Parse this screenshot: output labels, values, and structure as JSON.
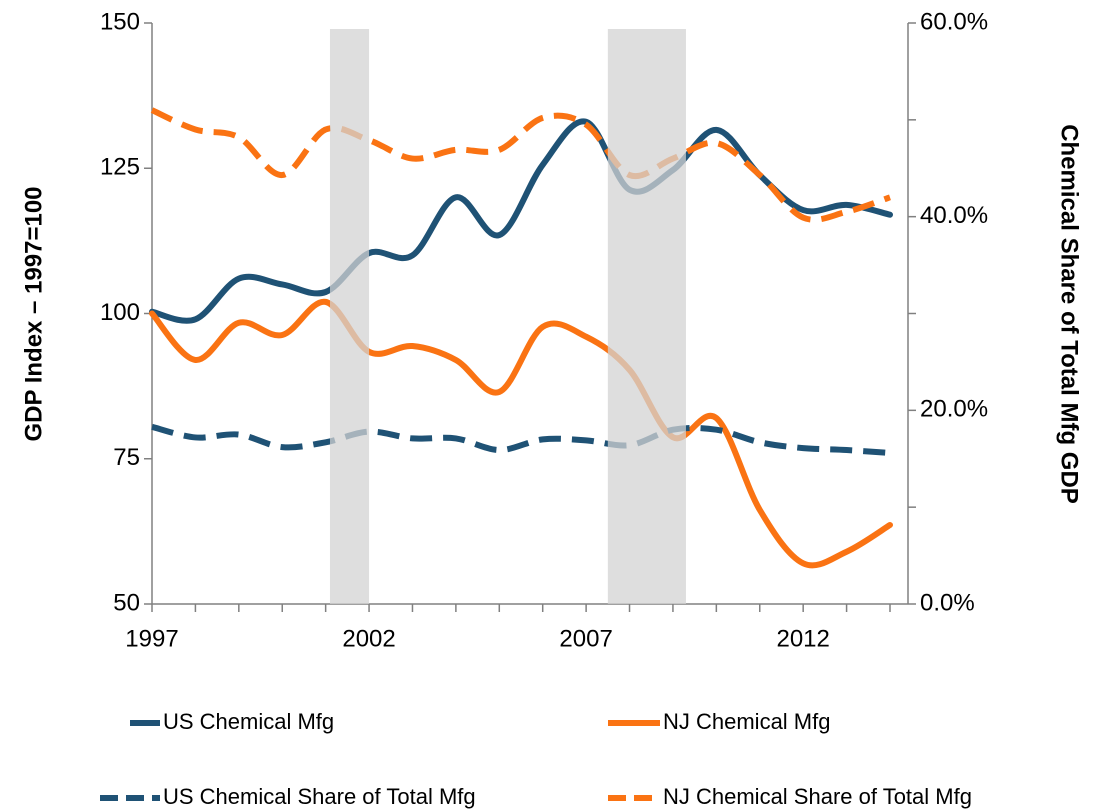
{
  "chart_data": {
    "type": "line",
    "x": [
      1997,
      1998,
      1999,
      2000,
      2001,
      2002,
      2003,
      2004,
      2005,
      2006,
      2007,
      2008,
      2009,
      2010,
      2011,
      2012,
      2013,
      2014
    ],
    "xlim": [
      1997,
      2014
    ],
    "xticks": [
      1997,
      2002,
      2007,
      2012
    ],
    "xminor_ticks": [
      1998,
      1999,
      2000,
      2001,
      2003,
      2004,
      2005,
      2006,
      2008,
      2009,
      2010,
      2011,
      2013,
      2014
    ],
    "ylabel": "GDP Index – 1997=100",
    "ylim": [
      50,
      150
    ],
    "yticks": [
      50,
      75,
      100,
      125,
      150
    ],
    "y2label": "Chemical Share of Total Mfg GDP",
    "y2lim": [
      0,
      60
    ],
    "y2ticks": [
      {
        "value": 0,
        "label": "0.0%"
      },
      {
        "value": 20,
        "label": "20.0%"
      },
      {
        "value": 40,
        "label": "40.0%"
      },
      {
        "value": 60,
        "label": "60.0%"
      }
    ],
    "y2minor_ticks": [
      10,
      30,
      50
    ],
    "shaded_ranges": [
      [
        2001.1,
        2002
      ],
      [
        2007.5,
        2009.3
      ]
    ],
    "series": [
      {
        "name": "US Chemical Mfg",
        "color": "#1f5275",
        "dashed": false,
        "values": [
          100.3,
          99,
          106,
          105,
          103.7,
          110.4,
          110,
          120,
          113.5,
          125.6,
          133,
          121.3,
          124.7,
          131.6,
          123.8,
          117.8,
          118.7,
          117
        ]
      },
      {
        "name": "NJ Chemical Mfg",
        "color": "#fa7313",
        "dashed": false,
        "values": [
          100,
          92,
          98.4,
          96.3,
          102,
          93.4,
          94.4,
          92,
          86.5,
          97.7,
          96,
          90.3,
          78.7,
          82,
          66.2,
          57,
          59,
          63.6
        ]
      },
      {
        "name": "US Chemical Share of Total Mfg",
        "color": "#1f5275",
        "dashed": true,
        "axis": "y2",
        "values": [
          18.3,
          17.2,
          17.5,
          16.2,
          16.7,
          17.8,
          17.1,
          17.1,
          15.9,
          17.0,
          16.9,
          16.4,
          18.0,
          18.0,
          16.7,
          16.1,
          15.9,
          15.6
        ]
      },
      {
        "name": "NJ Chemical Share of Total Mfg",
        "color": "#fa7313",
        "dashed": true,
        "axis": "y2",
        "values": [
          51,
          49,
          48.2,
          44.3,
          49,
          47.9,
          46,
          46.9,
          46.9,
          50.2,
          49.5,
          44.3,
          46,
          47.6,
          44.3,
          39.9,
          40.5,
          42
        ]
      }
    ]
  }
}
